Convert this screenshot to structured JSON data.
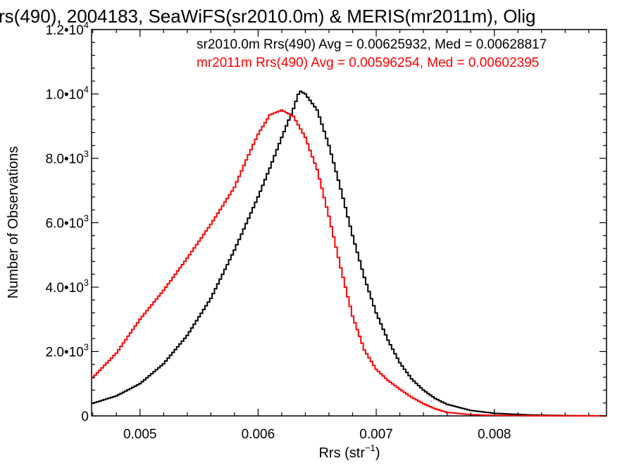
{
  "chart_data": {
    "type": "line",
    "title": "rs(490), 2004183, SeaWiFS(sr2010.0m) & MERIS(mr2011m), Olig",
    "xlabel_main": "Rrs (str",
    "xlabel_sup": "−1",
    "xlabel_close": ")",
    "ylabel": "Number of Observations",
    "xlim": [
      0.00459,
      0.00895
    ],
    "ylim": [
      0,
      12000
    ],
    "x_ticks": [
      {
        "value": 0.005,
        "label": "0.005"
      },
      {
        "value": 0.006,
        "label": "0.006"
      },
      {
        "value": 0.007,
        "label": "0.007"
      },
      {
        "value": 0.008,
        "label": "0.008"
      }
    ],
    "y_ticks": [
      {
        "value": 0,
        "mant": "0",
        "exp": ""
      },
      {
        "value": 2000,
        "mant": "2.0•10",
        "exp": "3"
      },
      {
        "value": 4000,
        "mant": "4.0•10",
        "exp": "3"
      },
      {
        "value": 6000,
        "mant": "6.0•10",
        "exp": "3"
      },
      {
        "value": 8000,
        "mant": "8.0•10",
        "exp": "3"
      },
      {
        "value": 10000,
        "mant": "1.0•10",
        "exp": "4"
      },
      {
        "value": 12000,
        "mant": "1.2•10",
        "exp": "4"
      }
    ],
    "annotations": [
      {
        "text": "sr2010.0m Rrs(490) Avg = 0.00625932, Med = 0.00628817",
        "color": "#000000"
      },
      {
        "text": "mr2011m Rrs(490) Avg = 0.00596254, Med = 0.00602395",
        "color": "#ff0000"
      }
    ],
    "series": [
      {
        "color": "#000000",
        "points": [
          [
            0.00459,
            380
          ],
          [
            0.0048,
            620
          ],
          [
            0.005,
            1000
          ],
          [
            0.0052,
            1620
          ],
          [
            0.0054,
            2500
          ],
          [
            0.0056,
            3650
          ],
          [
            0.0058,
            5150
          ],
          [
            0.006,
            6800
          ],
          [
            0.0061,
            7700
          ],
          [
            0.0062,
            8650
          ],
          [
            0.0063,
            9550
          ],
          [
            0.00635,
            10100
          ],
          [
            0.0064,
            10000
          ],
          [
            0.0065,
            9500
          ],
          [
            0.0066,
            8400
          ],
          [
            0.0067,
            7050
          ],
          [
            0.0068,
            5600
          ],
          [
            0.0069,
            4300
          ],
          [
            0.007,
            3200
          ],
          [
            0.0071,
            2350
          ],
          [
            0.0072,
            1650
          ],
          [
            0.0073,
            1150
          ],
          [
            0.0074,
            800
          ],
          [
            0.0075,
            540
          ],
          [
            0.0076,
            360
          ],
          [
            0.0078,
            170
          ],
          [
            0.008,
            80
          ],
          [
            0.0083,
            30
          ],
          [
            0.0086,
            10
          ],
          [
            0.00895,
            0
          ]
        ]
      },
      {
        "color": "#ff0000",
        "points": [
          [
            0.00459,
            1150
          ],
          [
            0.0048,
            1950
          ],
          [
            0.005,
            3000
          ],
          [
            0.0052,
            3900
          ],
          [
            0.0054,
            4900
          ],
          [
            0.0056,
            5950
          ],
          [
            0.0058,
            7100
          ],
          [
            0.0059,
            7950
          ],
          [
            0.006,
            8750
          ],
          [
            0.0061,
            9350
          ],
          [
            0.0062,
            9500
          ],
          [
            0.0063,
            9300
          ],
          [
            0.0064,
            8650
          ],
          [
            0.0065,
            7650
          ],
          [
            0.0066,
            6200
          ],
          [
            0.0067,
            4600
          ],
          [
            0.0068,
            3100
          ],
          [
            0.0069,
            2050
          ],
          [
            0.007,
            1450
          ],
          [
            0.0071,
            1100
          ],
          [
            0.0072,
            830
          ],
          [
            0.0073,
            580
          ],
          [
            0.0074,
            380
          ],
          [
            0.0075,
            220
          ],
          [
            0.0076,
            110
          ],
          [
            0.0078,
            40
          ],
          [
            0.008,
            15
          ],
          [
            0.0085,
            3
          ],
          [
            0.00895,
            0
          ]
        ]
      }
    ]
  }
}
